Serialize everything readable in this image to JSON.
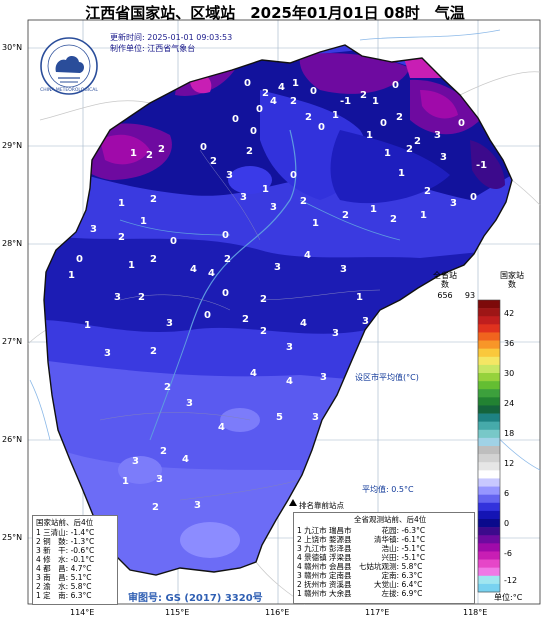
{
  "title": "江西省国家站、区域站　2025年01月01日 08时　气温",
  "update_time": "更新时间: 2025-01-01 09:03:53",
  "producer": "制作单位: 江西省气象台",
  "logo_text": "CHINA METEOROLOGICAL",
  "lat_labels": [
    "30°N",
    "29°N",
    "28°N",
    "27°N",
    "26°N",
    "25°N"
  ],
  "lon_labels": [
    "114°E",
    "115°E",
    "116°E",
    "117°E",
    "118°E"
  ],
  "legend": {
    "province_station_title": "全省站数",
    "province_station_count": "656",
    "national_station_title": "国家站数",
    "national_station_count": "93",
    "unit": "单位:°C",
    "ticks": [
      "42",
      "36",
      "30",
      "24",
      "18",
      "12",
      "6",
      "0",
      "-6",
      "-12"
    ],
    "colors": [
      "#7d0a0a",
      "#9e1616",
      "#c01e1e",
      "#e0321e",
      "#f0641e",
      "#f89628",
      "#fac83c",
      "#f4e664",
      "#c8e664",
      "#96d23c",
      "#64be32",
      "#3ca03c",
      "#228232",
      "#14643c",
      "#1e8282",
      "#46aaaa",
      "#78c8c8",
      "#a0d2e6",
      "#bebebe",
      "#d2d2d2",
      "#e6e6e6",
      "#ffffff",
      "#c8c8ff",
      "#9696ff",
      "#6464f0",
      "#3232dc",
      "#1414b4",
      "#0a0a8c",
      "#3c0a8c",
      "#6e0aa0",
      "#a00aaa",
      "#c81eb4",
      "#e646c8",
      "#f078e6",
      "#a0e6f0",
      "#78d2f0"
    ]
  },
  "city_avg_label": "设区市平均值(°C)",
  "avg_label": "平均值: 0.5°C",
  "ranking": {
    "header": "排名靠前站点",
    "left_title": "国家站前、后4位",
    "left_rows": [
      "1 三清山: -1.4°C",
      "2 铜　鼓: -1.3°C",
      "3 新　干: -0.6°C",
      "4 修　水: -0.1°C",
      "4 都　昌: 4.7°C",
      "3 南　昌: 5.1°C",
      "2 渝　水: 5.8°C",
      "1 定　南: 6.3°C"
    ],
    "right_title": "全省观测站前、后4位",
    "right_rows": [
      "1 九江市 瑞昌市　　　　花园: -6.3°C",
      "2 上饶市 婺源县　　　清华镇: -6.1°C",
      "3 九江市 彭泽县　　　　浩山: -5.1°C",
      "4 景德镇 浮梁县　　　　兴田: -5.1°C",
      "4 赣州市 会昌县　七姑坑观测: 5.8°C",
      "3 赣州市 定南县　　　　定南: 6.3°C",
      "2 抚州市 资溪县　　　大觉山: 6.4°C",
      "1 赣州市 大余县　　　　左拔: 6.9°C"
    ]
  },
  "approval": "审图号: GS (2017) 3320号",
  "station_values": [
    {
      "v": "0"
    },
    {
      "v": "2"
    },
    {
      "v": "4"
    },
    {
      "v": "1"
    },
    {
      "v": "0"
    },
    {
      "v": "4"
    },
    {
      "v": "2"
    },
    {
      "v": "0"
    },
    {
      "v": "0"
    },
    {
      "v": "2"
    },
    {
      "v": "1"
    },
    {
      "v": "0"
    },
    {
      "v": "-1"
    },
    {
      "v": "2"
    },
    {
      "v": "1"
    },
    {
      "v": "0"
    },
    {
      "v": "2"
    },
    {
      "v": "0"
    },
    {
      "v": "1"
    },
    {
      "v": "0"
    },
    {
      "v": "2"
    },
    {
      "v": "1"
    },
    {
      "v": "3"
    },
    {
      "v": "3"
    },
    {
      "v": "2"
    },
    {
      "v": "3"
    },
    {
      "v": "0"
    },
    {
      "v": "1"
    },
    {
      "v": "2"
    },
    {
      "v": "-1"
    },
    {
      "v": "1"
    },
    {
      "v": "2"
    },
    {
      "v": "2"
    },
    {
      "v": "2"
    },
    {
      "v": "0"
    },
    {
      "v": "3"
    },
    {
      "v": "3"
    },
    {
      "v": "0"
    },
    {
      "v": "2"
    },
    {
      "v": "1"
    },
    {
      "v": "2"
    },
    {
      "v": "1"
    },
    {
      "v": "0"
    },
    {
      "v": "0"
    },
    {
      "v": "2"
    },
    {
      "v": "1"
    },
    {
      "v": "2"
    },
    {
      "v": "0"
    },
    {
      "v": "1"
    },
    {
      "v": "3"
    },
    {
      "v": "2"
    },
    {
      "v": "1"
    },
    {
      "v": "1"
    },
    {
      "v": "3"
    },
    {
      "v": "2"
    },
    {
      "v": "0"
    },
    {
      "v": "1"
    },
    {
      "v": "1"
    },
    {
      "v": "2"
    },
    {
      "v": "4"
    },
    {
      "v": "2"
    },
    {
      "v": "3"
    },
    {
      "v": "4"
    },
    {
      "v": "3"
    },
    {
      "v": "0"
    },
    {
      "v": "4"
    },
    {
      "v": "0"
    },
    {
      "v": "2"
    },
    {
      "v": "2"
    },
    {
      "v": "3"
    },
    {
      "v": "1"
    },
    {
      "v": "3"
    },
    {
      "v": "4"
    },
    {
      "v": "3"
    },
    {
      "v": "2"
    },
    {
      "v": "3"
    },
    {
      "v": "2"
    },
    {
      "v": "3"
    },
    {
      "v": "1"
    },
    {
      "v": "3"
    },
    {
      "v": "2"
    },
    {
      "v": "4"
    },
    {
      "v": "3"
    },
    {
      "v": "4"
    },
    {
      "v": "2"
    },
    {
      "v": "3"
    },
    {
      "v": "5"
    },
    {
      "v": "4"
    },
    {
      "v": "3"
    },
    {
      "v": "2"
    },
    {
      "v": "3"
    },
    {
      "v": "3"
    },
    {
      "v": "4"
    },
    {
      "v": "1"
    },
    {
      "v": "2"
    },
    {
      "v": "3"
    }
  ]
}
